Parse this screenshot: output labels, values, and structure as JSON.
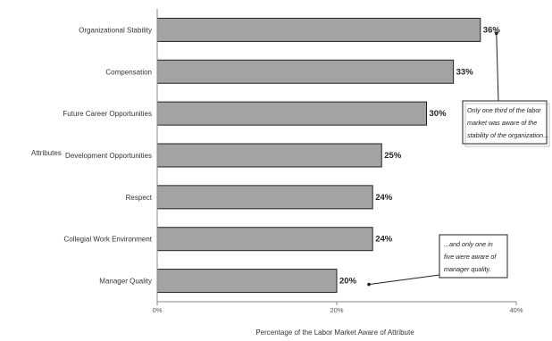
{
  "chart_data": {
    "type": "bar",
    "orientation": "horizontal",
    "categories": [
      "Organizational Stability",
      "Compensation",
      "Future Career Opportunities",
      "Development Opportunities",
      "Respect",
      "Collegial Work Environment",
      "Manager Quality"
    ],
    "values": [
      36,
      33,
      30,
      25,
      24,
      24,
      20
    ],
    "value_labels": [
      "36%",
      "33%",
      "30%",
      "25%",
      "24%",
      "24%",
      "20%"
    ],
    "xlim": [
      0,
      40
    ],
    "xticks": [
      0,
      20,
      40
    ],
    "xtick_labels": [
      "0%",
      "20%",
      "40%"
    ],
    "xlabel": "Percentage of the Labor Market Aware of Attribute",
    "ylabel": "Attributes",
    "grid": false,
    "bar_color": "#a3a3a3",
    "bar_edge_color": "#222222",
    "annotations": [
      {
        "target_index": 0,
        "lines": [
          "Only one third of the labor",
          "market was aware of the",
          "stability of the organization..."
        ]
      },
      {
        "target_index": 6,
        "lines": [
          "...and only one in",
          "five were aware of",
          "manager quality."
        ]
      }
    ]
  }
}
